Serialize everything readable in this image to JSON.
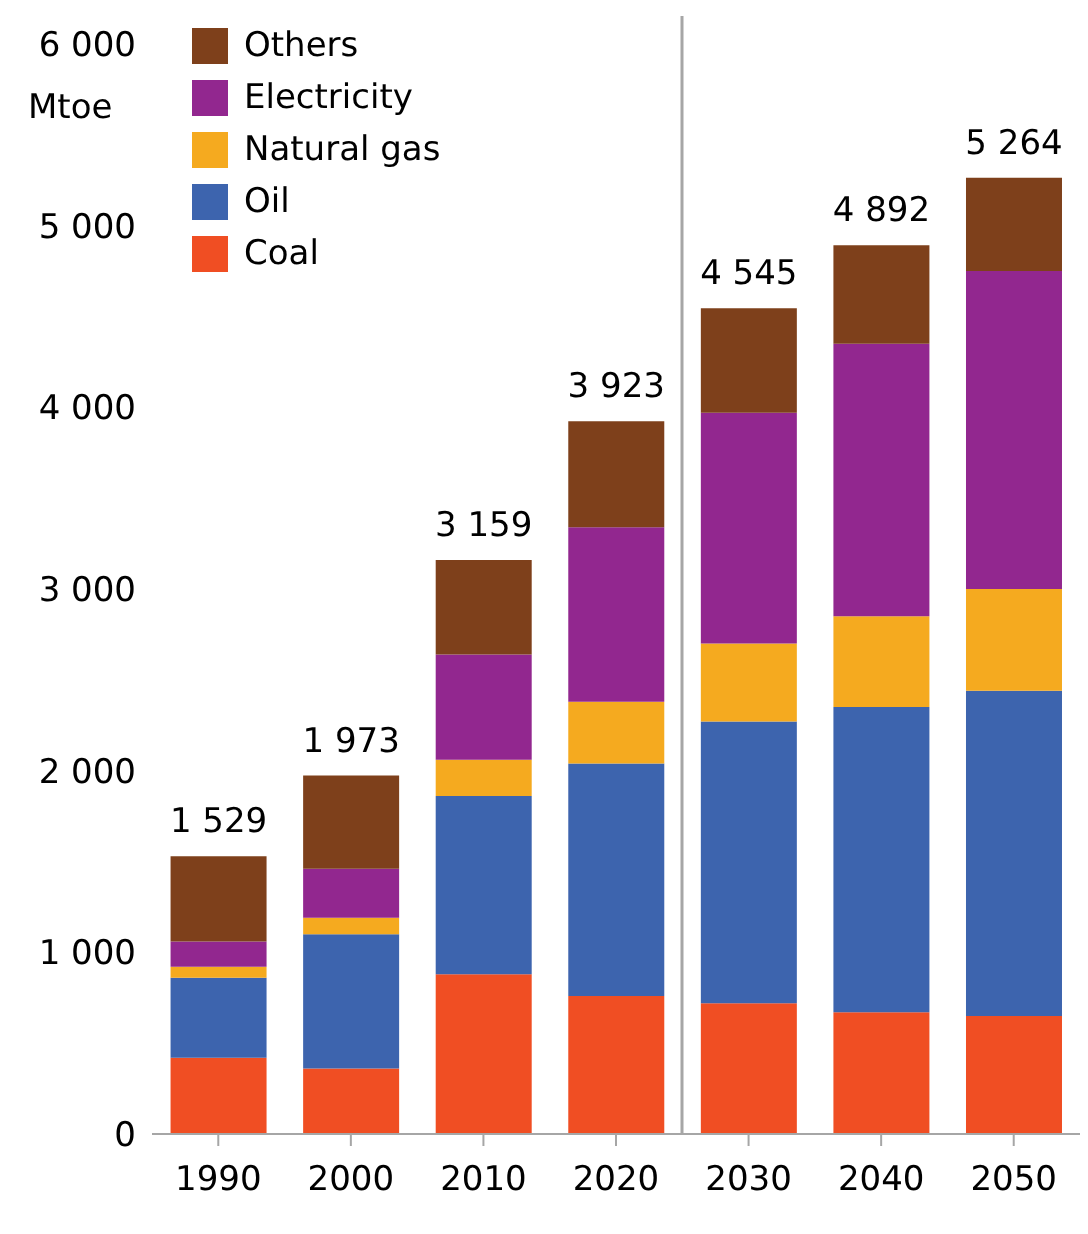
{
  "chart_data": {
    "type": "bar",
    "stacked": true,
    "ylabel": "Mtoe",
    "categories": [
      "1990",
      "2000",
      "2010",
      "2020",
      "2030",
      "2040",
      "2050"
    ],
    "series": [
      {
        "name": "Coal",
        "color": "#f04e23",
        "values": [
          420,
          360,
          880,
          760,
          720,
          670,
          650
        ]
      },
      {
        "name": "Oil",
        "color": "#3d64ae",
        "values": [
          440,
          740,
          980,
          1280,
          1550,
          1680,
          1790
        ]
      },
      {
        "name": "Natural gas",
        "color": "#f5aa1f",
        "values": [
          60,
          90,
          200,
          340,
          430,
          500,
          560
        ]
      },
      {
        "name": "Electricity",
        "color": "#92278f",
        "values": [
          140,
          270,
          580,
          960,
          1270,
          1500,
          1750
        ]
      },
      {
        "name": "Others",
        "color": "#7e401b",
        "values": [
          469,
          513,
          519,
          583,
          575,
          542,
          514
        ]
      }
    ],
    "totals": [
      "1 529",
      "1 973",
      "3 159",
      "3 923",
      "4 545",
      "4 892",
      "5 264"
    ],
    "ylim": [
      0,
      6000
    ],
    "yticks": [
      {
        "value": 0,
        "label": "0"
      },
      {
        "value": 1000,
        "label": "1 000"
      },
      {
        "value": 2000,
        "label": "2 000"
      },
      {
        "value": 3000,
        "label": "3 000"
      },
      {
        "value": 4000,
        "label": "4 000"
      },
      {
        "value": 5000,
        "label": "5 000"
      },
      {
        "value": 6000,
        "label": "6 000"
      }
    ],
    "legend": "top left"
  }
}
